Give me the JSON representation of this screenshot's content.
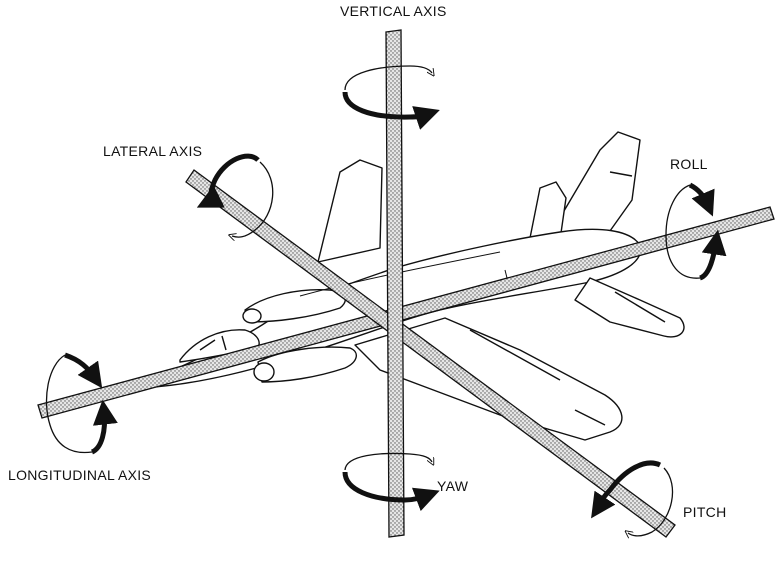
{
  "labels": {
    "vertical_axis": "VERTICAL AXIS",
    "lateral_axis": "LATERAL AXIS",
    "longitudinal_axis": "LONGITUDINAL AXIS",
    "roll": "ROLL",
    "pitch": "PITCH",
    "yaw": "YAW"
  },
  "colors": {
    "ink": "#111111",
    "axis_fill": "#d9d9d9",
    "background": "#ffffff"
  },
  "icons": [
    "rotation-arrow-icon"
  ]
}
